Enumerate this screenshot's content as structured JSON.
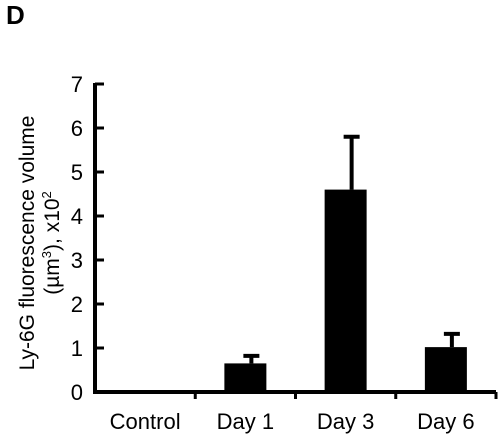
{
  "panel_label": "D",
  "chart_data": {
    "type": "bar",
    "categories": [
      "Control",
      "Day 1",
      "Day 3",
      "Day 6"
    ],
    "values": [
      0,
      0.65,
      4.6,
      1.02
    ],
    "error_bars": [
      0,
      0.17,
      1.2,
      0.3
    ],
    "ylabel": {
      "line1": "Ly-6G fluorescence volume",
      "line2_part1": "(µm",
      "line2_sup1": "3",
      "line2_part2": "), x10",
      "line2_sup2": "2"
    },
    "yticks": [
      0,
      1,
      2,
      3,
      4,
      5,
      6,
      7
    ],
    "ylim": [
      0,
      7
    ],
    "bar_color": "#000000",
    "grid": false
  }
}
